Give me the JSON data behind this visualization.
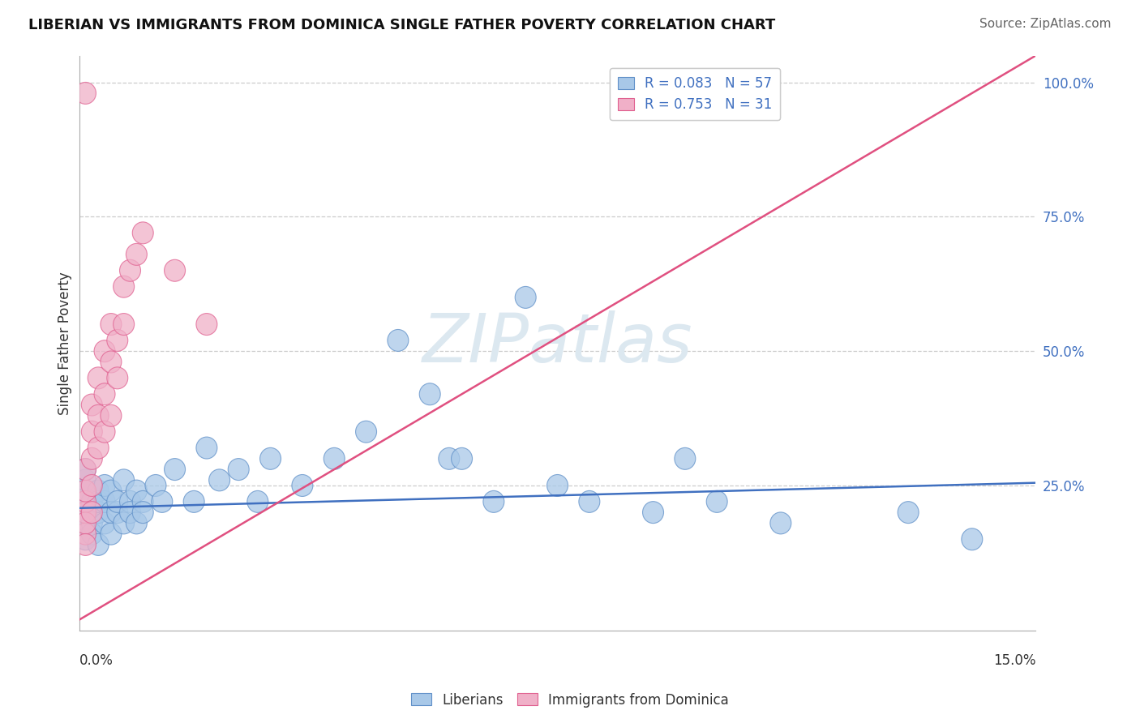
{
  "title": "LIBERIAN VS IMMIGRANTS FROM DOMINICA SINGLE FATHER POVERTY CORRELATION CHART",
  "source_text": "Source: ZipAtlas.com",
  "xlabel_bottom_left": "0.0%",
  "xlabel_bottom_right": "15.0%",
  "ylabel": "Single Father Poverty",
  "right_ytick_labels": [
    "25.0%",
    "50.0%",
    "75.0%",
    "100.0%"
  ],
  "right_ytick_vals": [
    0.25,
    0.5,
    0.75,
    1.0
  ],
  "legend_blue_label": "Liberians",
  "legend_pink_label": "Immigrants from Dominica",
  "R_blue": 0.083,
  "N_blue": 57,
  "R_pink": 0.753,
  "N_pink": 31,
  "blue_color": "#a8c8e8",
  "pink_color": "#f0b0c8",
  "blue_edge_color": "#6090c8",
  "pink_edge_color": "#e06090",
  "blue_line_color": "#4070c0",
  "pink_line_color": "#e05080",
  "watermark": "ZIPatlas",
  "watermark_color": "#dce8f0",
  "xlim": [
    0.0,
    0.15
  ],
  "ylim": [
    -0.02,
    1.05
  ],
  "blue_trend_x": [
    0.0,
    0.15
  ],
  "blue_trend_y": [
    0.208,
    0.255
  ],
  "pink_trend_x": [
    0.0,
    0.15
  ],
  "pink_trend_y": [
    0.0,
    1.05
  ],
  "blue_pts_x": [
    0.001,
    0.001,
    0.001,
    0.001,
    0.001,
    0.001,
    0.001,
    0.002,
    0.002,
    0.002,
    0.002,
    0.003,
    0.003,
    0.003,
    0.003,
    0.004,
    0.004,
    0.004,
    0.005,
    0.005,
    0.005,
    0.006,
    0.006,
    0.007,
    0.007,
    0.008,
    0.008,
    0.009,
    0.009,
    0.01,
    0.01,
    0.012,
    0.013,
    0.015,
    0.018,
    0.02,
    0.022,
    0.025,
    0.028,
    0.03,
    0.035,
    0.04,
    0.045,
    0.05,
    0.055,
    0.058,
    0.06,
    0.065,
    0.07,
    0.075,
    0.08,
    0.09,
    0.095,
    0.1,
    0.11,
    0.13,
    0.14
  ],
  "blue_pts_y": [
    0.2,
    0.22,
    0.18,
    0.24,
    0.26,
    0.15,
    0.28,
    0.2,
    0.22,
    0.18,
    0.16,
    0.24,
    0.2,
    0.22,
    0.14,
    0.18,
    0.22,
    0.25,
    0.2,
    0.24,
    0.16,
    0.2,
    0.22,
    0.18,
    0.26,
    0.22,
    0.2,
    0.18,
    0.24,
    0.22,
    0.2,
    0.25,
    0.22,
    0.28,
    0.22,
    0.32,
    0.26,
    0.28,
    0.22,
    0.3,
    0.25,
    0.3,
    0.35,
    0.52,
    0.42,
    0.3,
    0.3,
    0.22,
    0.6,
    0.25,
    0.22,
    0.2,
    0.3,
    0.22,
    0.18,
    0.2,
    0.15
  ],
  "pink_pts_x": [
    0.001,
    0.001,
    0.001,
    0.001,
    0.001,
    0.001,
    0.001,
    0.002,
    0.002,
    0.002,
    0.002,
    0.002,
    0.003,
    0.003,
    0.003,
    0.004,
    0.004,
    0.004,
    0.005,
    0.005,
    0.005,
    0.006,
    0.006,
    0.007,
    0.007,
    0.008,
    0.009,
    0.01,
    0.015,
    0.02,
    0.001
  ],
  "pink_pts_y": [
    0.2,
    0.22,
    0.16,
    0.24,
    0.28,
    0.18,
    0.14,
    0.3,
    0.25,
    0.35,
    0.2,
    0.4,
    0.38,
    0.32,
    0.45,
    0.42,
    0.5,
    0.35,
    0.48,
    0.38,
    0.55,
    0.52,
    0.45,
    0.62,
    0.55,
    0.65,
    0.68,
    0.72,
    0.65,
    0.55,
    0.98
  ]
}
